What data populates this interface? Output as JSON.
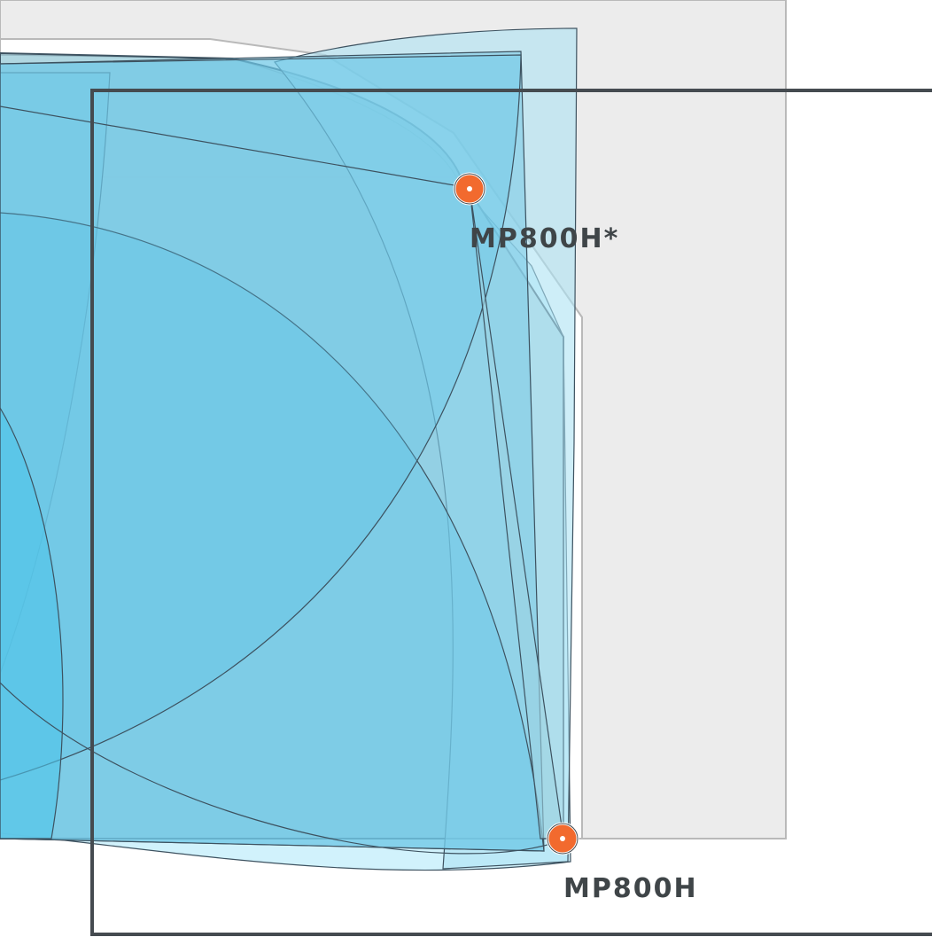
{
  "colors": {
    "background": "#ffffff",
    "grey_region_fill": "#ececec",
    "grey_region_stroke": "#b9b9b9",
    "frame_stroke": "#454b50",
    "shape_stroke": "#3d5260",
    "light_cyan": "#bfeefb",
    "sky_blue": "#8fd8ef",
    "mid_blue": "#6fcbe8",
    "deep_blue": "#4ec4ea",
    "grey_blue": "#a9c9d6",
    "marker_fill": "#f26a2e",
    "label_color": "#3f4548"
  },
  "markers": [
    {
      "id": "mp800h-star",
      "label": "MP800H*"
    },
    {
      "id": "mp800h",
      "label": "MP800H"
    }
  ]
}
